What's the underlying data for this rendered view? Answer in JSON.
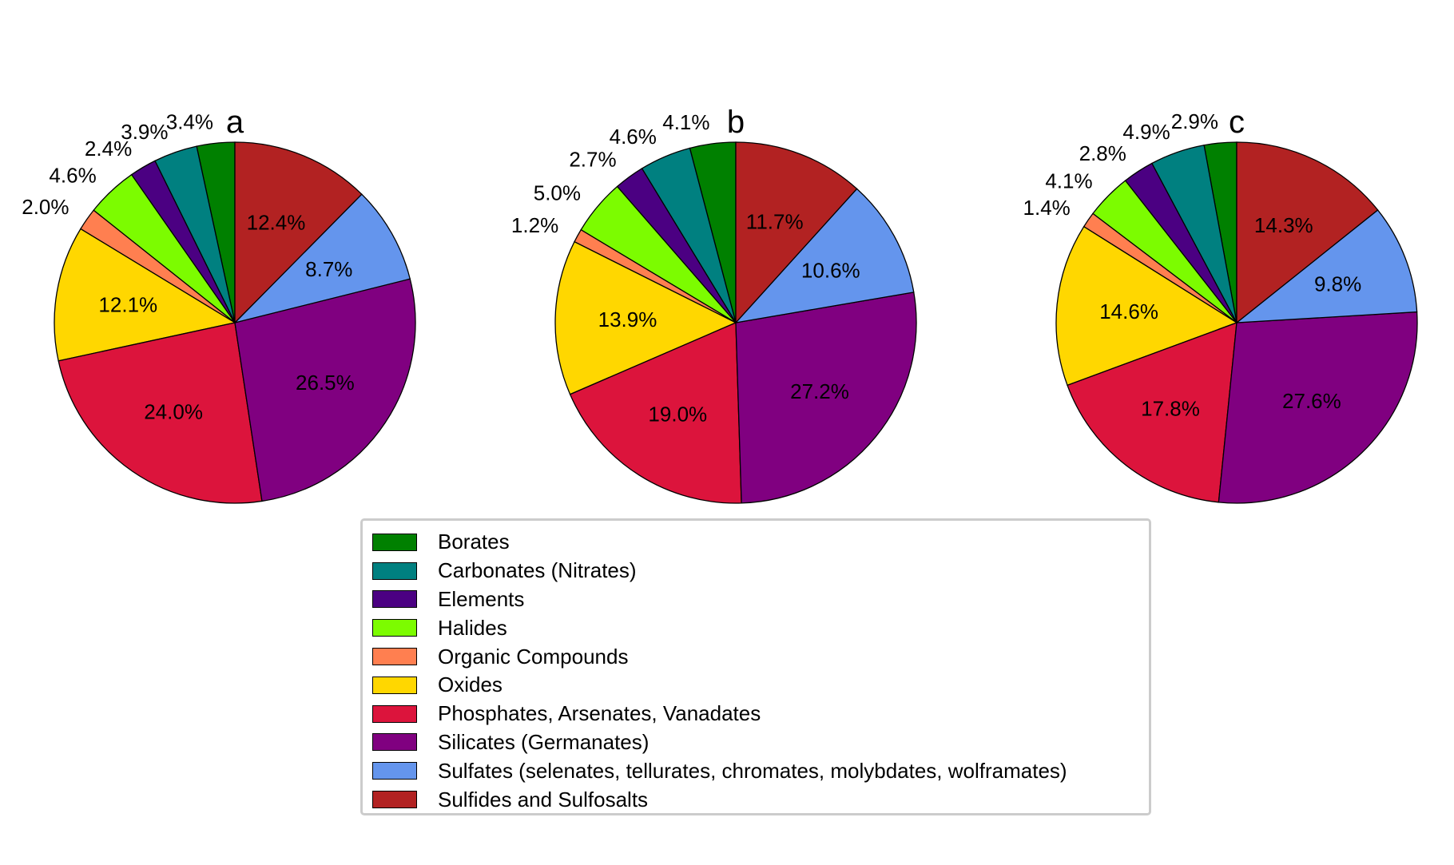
{
  "chart_data": [
    {
      "type": "pie",
      "title": "a",
      "categories": [
        "Borates",
        "Carbonates (Nitrates)",
        "Elements",
        "Halides",
        "Organic Compounds",
        "Oxides",
        "Phosphates, Arsenates, Vanadates",
        "Silicates (Germanates)",
        "Sulfates (selenates, tellurates, chromates, molybdates, wolframates)",
        "Sulfides and Sulfosalts"
      ],
      "values": [
        3.4,
        3.9,
        2.4,
        4.6,
        2.0,
        12.1,
        24.0,
        26.5,
        8.7,
        12.4
      ],
      "labels": [
        "3.4%",
        "3.9%",
        "2.4%",
        "4.6%",
        "2.0%",
        "12.1%",
        "24.0%",
        "26.5%",
        "8.7%",
        "12.4%"
      ]
    },
    {
      "type": "pie",
      "title": "b",
      "categories": [
        "Borates",
        "Carbonates (Nitrates)",
        "Elements",
        "Halides",
        "Organic Compounds",
        "Oxides",
        "Phosphates, Arsenates, Vanadates",
        "Silicates (Germanates)",
        "Sulfates (selenates, tellurates, chromates, molybdates, wolframates)",
        "Sulfides and Sulfosalts"
      ],
      "values": [
        4.1,
        4.6,
        2.7,
        5.0,
        1.2,
        13.9,
        19.0,
        27.2,
        10.6,
        11.7
      ],
      "labels": [
        "4.1%",
        "4.6%",
        "2.7%",
        "5.0%",
        "1.2%",
        "13.9%",
        "19.0%",
        "27.2%",
        "10.6%",
        "11.7%"
      ]
    },
    {
      "type": "pie",
      "title": "c",
      "categories": [
        "Borates",
        "Carbonates (Nitrates)",
        "Elements",
        "Halides",
        "Organic Compounds",
        "Oxides",
        "Phosphates, Arsenates, Vanadates",
        "Silicates (Germanates)",
        "Sulfates (selenates, tellurates, chromates, molybdates, wolframates)",
        "Sulfides and Sulfosalts"
      ],
      "values": [
        2.9,
        4.9,
        2.8,
        4.1,
        1.4,
        14.6,
        17.8,
        27.6,
        9.8,
        14.3
      ],
      "labels": [
        "2.9%",
        "4.9%",
        "2.8%",
        "4.1%",
        "1.4%",
        "14.6%",
        "17.8%",
        "27.6%",
        "9.8%",
        "14.3%"
      ]
    }
  ],
  "colors": [
    "#008000",
    "#008080",
    "#4b0082",
    "#7cfc00",
    "#ff7f50",
    "#ffd700",
    "#dc143c",
    "#800080",
    "#6495ed",
    "#b22222"
  ],
  "legend": {
    "placement": "bottom-center",
    "items": [
      {
        "label": "Borates",
        "color": "#008000"
      },
      {
        "label": "Carbonates (Nitrates)",
        "color": "#008080"
      },
      {
        "label": "Elements",
        "color": "#4b0082"
      },
      {
        "label": "Halides",
        "color": "#7cfc00"
      },
      {
        "label": "Organic Compounds",
        "color": "#ff7f50"
      },
      {
        "label": "Oxides",
        "color": "#ffd700"
      },
      {
        "label": "Phosphates, Arsenates, Vanadates",
        "color": "#dc143c"
      },
      {
        "label": "Silicates (Germanates)",
        "color": "#800080"
      },
      {
        "label": "Sulfates (selenates, tellurates, chromates, molybdates, wolframates)",
        "color": "#6495ed"
      },
      {
        "label": "Sulfides and Sulfosalts",
        "color": "#b22222"
      }
    ]
  }
}
